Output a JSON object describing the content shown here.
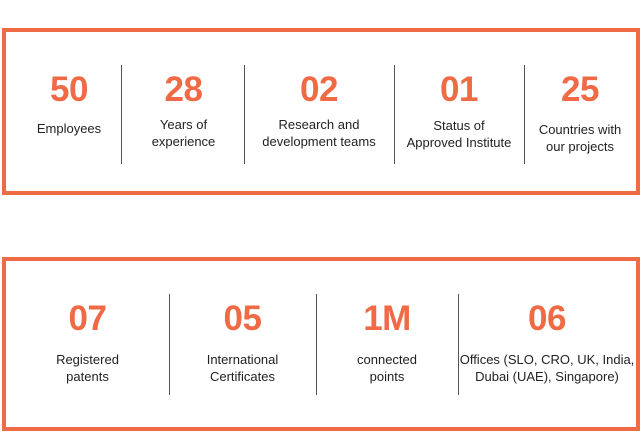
{
  "top_stats": [
    {
      "value": "50",
      "label": "Employees"
    },
    {
      "value": "28",
      "label": "Years of\nexperience"
    },
    {
      "value": "02",
      "label": "Research and\ndevelopment teams"
    },
    {
      "value": "01",
      "label": "Status of\nApproved Institute"
    },
    {
      "value": "25",
      "label": "Countries with\nour projects"
    }
  ],
  "bottom_stats": [
    {
      "value": "07",
      "label": "Registered\npatents"
    },
    {
      "value": "05",
      "label": "International\nCertificates"
    },
    {
      "value": "1M",
      "label": "connected\npoints"
    },
    {
      "value": "06",
      "label": "Offices (SLO, CRO, UK, India,\nDubai (UAE), Singapore)"
    }
  ],
  "colors": {
    "accent": "#ef6a45",
    "text": "#222222",
    "divider": "#555555"
  }
}
